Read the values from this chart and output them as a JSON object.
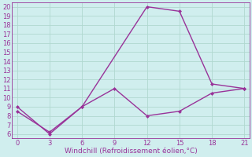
{
  "line1_x": [
    0,
    3,
    6,
    12,
    15,
    18,
    21
  ],
  "line1_y": [
    9,
    6,
    9,
    20,
    19.5,
    11.5,
    11
  ],
  "line2_x": [
    0,
    3,
    6,
    9,
    12,
    15,
    18,
    21
  ],
  "line2_y": [
    8.5,
    6.2,
    9.0,
    11.0,
    8.0,
    8.5,
    10.5,
    11
  ],
  "line_color": "#993399",
  "bg_color": "#d0eeee",
  "grid_color": "#b0d8d0",
  "xlabel": "Windchill (Refroidissement éolien,°C)",
  "xlim": [
    -0.5,
    21.5
  ],
  "ylim": [
    5.5,
    20.5
  ],
  "xticks": [
    0,
    3,
    6,
    9,
    12,
    15,
    18,
    21
  ],
  "yticks": [
    6,
    7,
    8,
    9,
    10,
    11,
    12,
    13,
    14,
    15,
    16,
    17,
    18,
    19,
    20
  ],
  "xlabel_fontsize": 6.5,
  "tick_fontsize": 6,
  "marker": "D",
  "marker_size": 2.5,
  "line_width": 1.0
}
